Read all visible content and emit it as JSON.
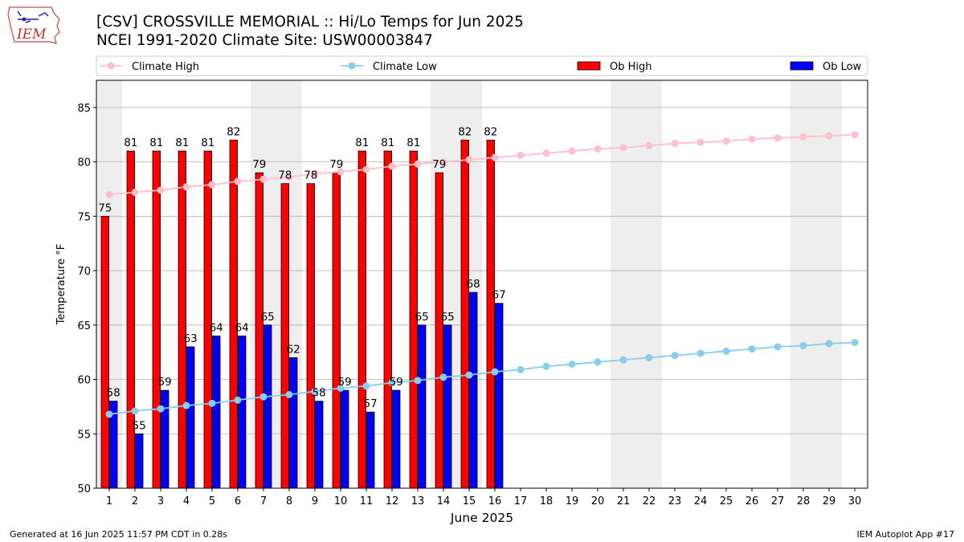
{
  "header": {
    "title_line1": "[CSV] CROSSVILLE MEMORIAL :: Hi/Lo Temps for Jun 2025",
    "title_line2": "NCEI 1991-2020 Climate Site: USW00003847"
  },
  "logo": {
    "text": "IEM",
    "icon": "iowa-state-map-icon"
  },
  "footer": {
    "generated": "Generated at 16 Jun 2025 11:57 PM CDT in 0.28s",
    "app": "IEM Autoplot App #17"
  },
  "colors": {
    "ob_high": "#ff0000",
    "ob_low": "#0000ff",
    "climate_high": "#ffc0cb",
    "climate_low": "#87ceeb",
    "weekend_shade": "#eeeeee",
    "grid": "#b0b0b0"
  },
  "chart_data": {
    "type": "bar",
    "xlabel": "June 2025",
    "ylabel": "Temperature °F",
    "ylim": [
      50,
      87.5
    ],
    "yticks": [
      50,
      55,
      60,
      65,
      70,
      75,
      80,
      85
    ],
    "grid": "horizontal",
    "legend_placement": "top",
    "days": [
      1,
      2,
      3,
      4,
      5,
      6,
      7,
      8,
      9,
      10,
      11,
      12,
      13,
      14,
      15,
      16,
      17,
      18,
      19,
      20,
      21,
      22,
      23,
      24,
      25,
      26,
      27,
      28,
      29,
      30
    ],
    "weekend_days": [
      1,
      7,
      8,
      14,
      15,
      21,
      22,
      28,
      29
    ],
    "series": [
      {
        "name": "Climate High",
        "kind": "line",
        "values": [
          77.0,
          77.2,
          77.4,
          77.7,
          77.9,
          78.2,
          78.4,
          78.6,
          78.9,
          79.1,
          79.3,
          79.6,
          79.8,
          80.0,
          80.2,
          80.4,
          80.6,
          80.8,
          81.0,
          81.2,
          81.3,
          81.5,
          81.7,
          81.8,
          81.9,
          82.1,
          82.2,
          82.3,
          82.4,
          82.5
        ]
      },
      {
        "name": "Climate Low",
        "kind": "line",
        "values": [
          56.8,
          57.1,
          57.3,
          57.6,
          57.8,
          58.1,
          58.4,
          58.6,
          58.9,
          59.2,
          59.4,
          59.7,
          59.9,
          60.2,
          60.4,
          60.7,
          60.9,
          61.2,
          61.4,
          61.6,
          61.8,
          62.0,
          62.2,
          62.4,
          62.6,
          62.8,
          63.0,
          63.1,
          63.3,
          63.4
        ]
      },
      {
        "name": "Ob High",
        "kind": "bar",
        "values": [
          75,
          81,
          81,
          81,
          81,
          82,
          79,
          78,
          78,
          79,
          81,
          81,
          81,
          79,
          82,
          82
        ]
      },
      {
        "name": "Ob Low",
        "kind": "bar",
        "values": [
          58,
          55,
          59,
          63,
          64,
          64,
          65,
          62,
          58,
          59,
          57,
          59,
          65,
          65,
          68,
          67
        ]
      }
    ]
  }
}
